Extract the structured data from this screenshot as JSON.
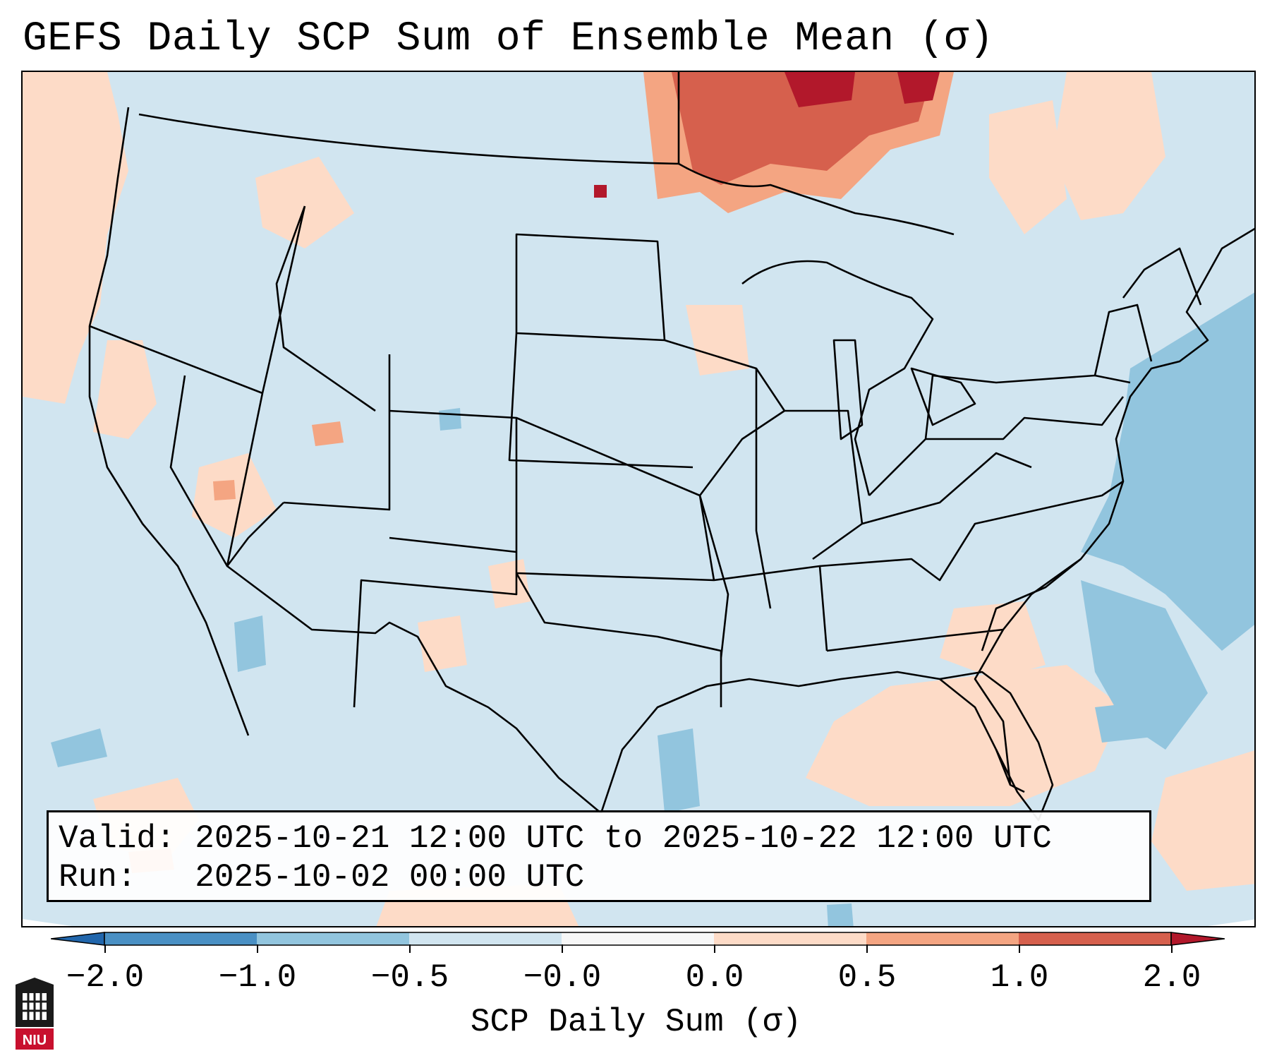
{
  "title": "GEFS Daily SCP Sum of Ensemble Mean (σ)",
  "info": {
    "valid_label": "Valid:",
    "valid_value": "2025-10-21 12:00 UTC to 2025-10-22 12:00 UTC",
    "run_label": "Run:",
    "run_value": "2025-10-02 00:00 UTC"
  },
  "colorbar": {
    "label": "SCP Daily Sum (σ)",
    "ticks": [
      "−2.0",
      "−1.0",
      "−0.5",
      "−0.0",
      "0.0",
      "0.5",
      "1.0",
      "2.0"
    ],
    "colors": [
      "#4a90c4",
      "#92c5de",
      "#d1e5f0",
      "#f7f7f7",
      "#fddbc7",
      "#f4a582",
      "#d6604d",
      "#b2182b"
    ]
  },
  "logo": {
    "text": "NIU",
    "icon": "university-seal-icon"
  },
  "map": {
    "background_fill": "#d1e5f0",
    "outside_fill": "#ffffff"
  }
}
